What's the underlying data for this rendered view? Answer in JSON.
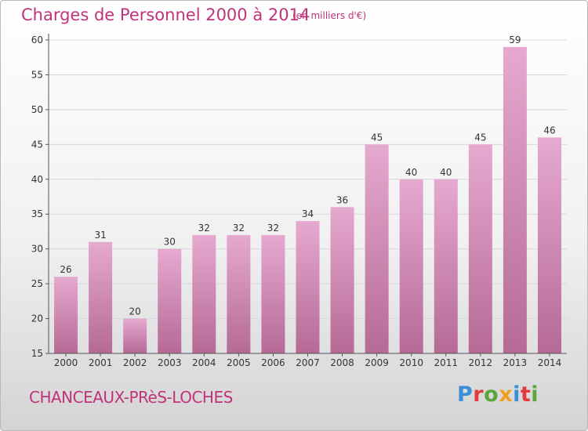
{
  "header": {
    "title": "Charges de Personnel 2000 à 2014",
    "subtitle": "(en milliers d'€)"
  },
  "footer": {
    "location": "CHANCEAUX-PRèS-LOCHES",
    "brand": "Proxiti"
  },
  "colors": {
    "title": "#c0337a",
    "bar_top": "#e6a9cf",
    "bar_bottom": "#b56a95",
    "grid": "#d8d8d8",
    "axis": "#555555",
    "logo": [
      "#3a8fd6",
      "#e23b3b",
      "#5aa63b",
      "#f0a020",
      "#3a8fd6",
      "#e23b3b",
      "#5aa63b"
    ]
  },
  "chart_data": {
    "type": "bar",
    "title": "Charges de Personnel 2000 à 2014",
    "subtitle": "(en milliers d'€)",
    "categories": [
      "2000",
      "2001",
      "2002",
      "2003",
      "2004",
      "2005",
      "2006",
      "2007",
      "2008",
      "2009",
      "2010",
      "2011",
      "2012",
      "2013",
      "2014"
    ],
    "values": [
      26,
      31,
      20,
      30,
      32,
      32,
      32,
      34,
      36,
      45,
      40,
      40,
      45,
      59,
      46
    ],
    "ylim": [
      15,
      60
    ],
    "yticks": [
      15,
      20,
      25,
      30,
      35,
      40,
      45,
      50,
      55,
      60
    ],
    "grid": true,
    "legend": "none",
    "data_labels": true
  }
}
